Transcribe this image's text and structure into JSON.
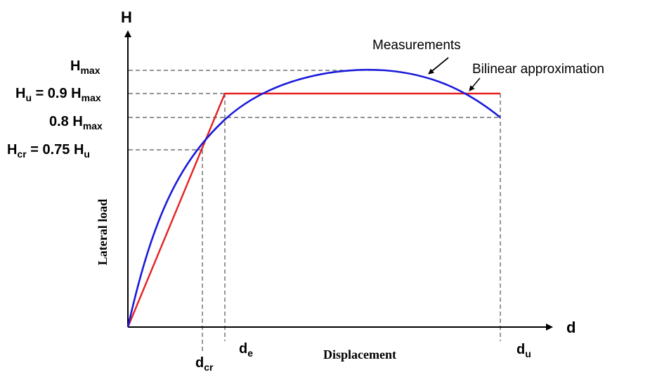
{
  "axes": {
    "y_symbol": "H",
    "x_symbol": "d",
    "y_title": "Lateral load",
    "x_title": "Displacement"
  },
  "y_levels": {
    "hmax": {
      "main": "H",
      "sub": "max"
    },
    "hu": {
      "main1": "H",
      "sub1": "u",
      "mid": " = 0.9 H",
      "sub2": "max"
    },
    "h08": {
      "main": "0.8 H",
      "sub": "max"
    },
    "hcr": {
      "main1": "H",
      "sub1": "cr",
      "mid": " = 0.75 H",
      "sub2": "u"
    }
  },
  "x_levels": {
    "dcr": {
      "main": "d",
      "sub": "cr"
    },
    "de": {
      "main": "d",
      "sub": "e"
    },
    "du": {
      "main": "d",
      "sub": "u"
    }
  },
  "legend": {
    "measurements": "Measurements",
    "bilinear": "Bilinear approximation"
  },
  "colors": {
    "measurements": "#1a1adb",
    "bilinear": "#e82020",
    "axis": "#000000",
    "guide": "#555555"
  }
}
